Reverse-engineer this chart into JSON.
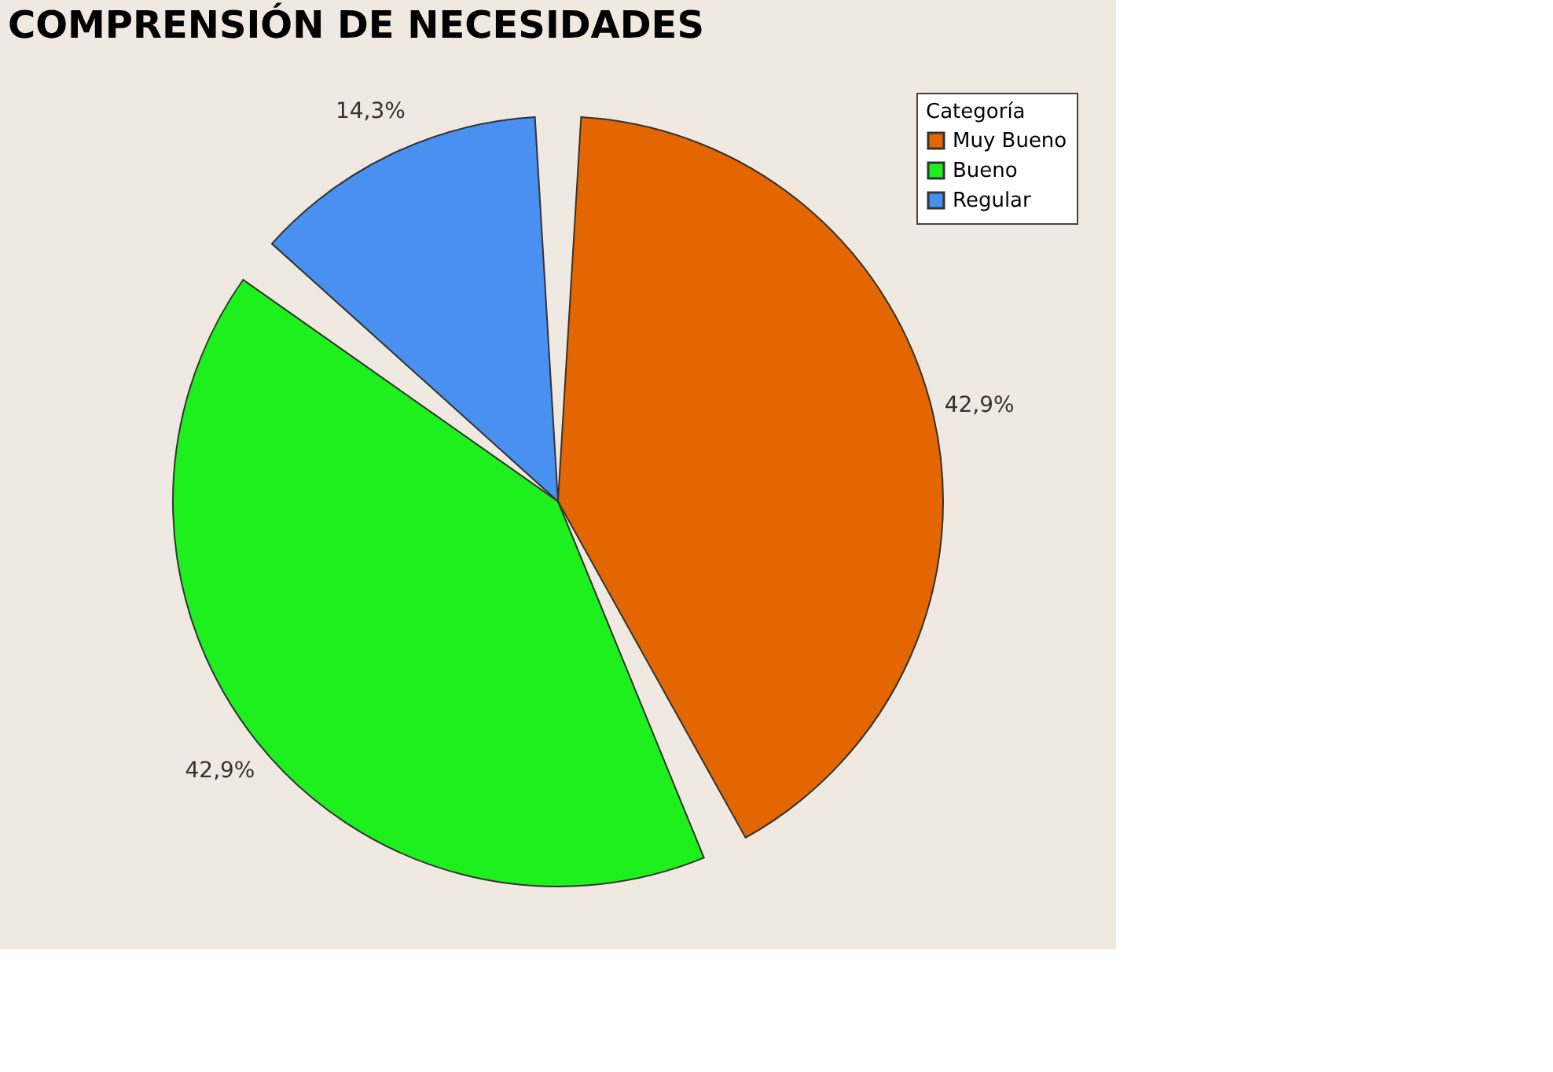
{
  "chart_data": {
    "type": "pie",
    "title": "COMPRENSIÓN DE NECESIDADES",
    "legend_title": "Categoría",
    "legend": "top right",
    "categories": [
      "Muy Bueno",
      "Bueno",
      "Regular"
    ],
    "values": [
      42.9,
      42.9,
      14.3
    ],
    "colors": [
      "#e36600",
      "#1ef01e",
      "#4a90f0"
    ],
    "value_labels": [
      "42,9%",
      "42,9%",
      "14,3%"
    ]
  }
}
